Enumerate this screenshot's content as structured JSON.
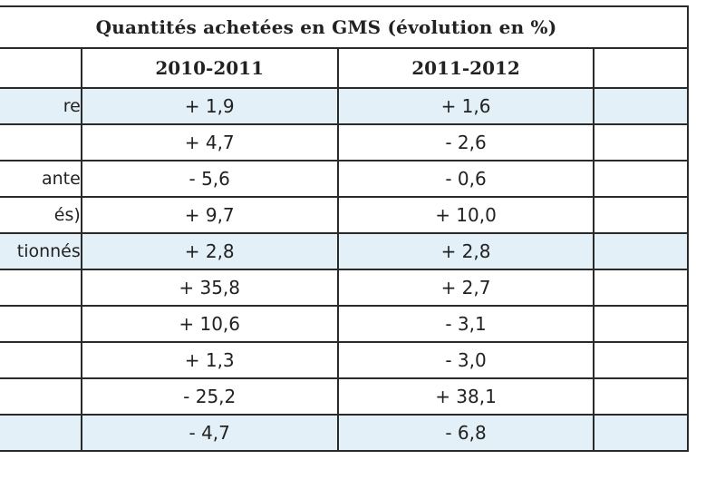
{
  "table": {
    "title": "Quantités achetées en GMS (évolution en %)",
    "columns": [
      "2010-2011",
      "2011-2012",
      ""
    ],
    "rows": [
      {
        "label": "re",
        "v1": "+ 1,9",
        "v2": "+ 1,6",
        "highlight": true
      },
      {
        "label": "",
        "v1": "+ 4,7",
        "v2": "- 2,6",
        "highlight": false
      },
      {
        "label": "ante",
        "v1": "- 5,6",
        "v2": "- 0,6",
        "highlight": false
      },
      {
        "label": "és)",
        "v1": "+ 9,7",
        "v2": "+ 10,0",
        "highlight": false
      },
      {
        "label": "tionnés",
        "v1": "+ 2,8",
        "v2": "+ 2,8",
        "highlight": true
      },
      {
        "label": "",
        "v1": "+ 35,8",
        "v2": "+ 2,7",
        "highlight": false
      },
      {
        "label": "",
        "v1": "+ 10,6",
        "v2": "- 3,1",
        "highlight": false
      },
      {
        "label": "",
        "v1": "+ 1,3",
        "v2": "- 3,0",
        "highlight": false
      },
      {
        "label": "",
        "v1": "- 25,2",
        "v2": "+ 38,1",
        "highlight": false
      },
      {
        "label": "",
        "v1": "- 4,7",
        "v2": "- 6,8",
        "highlight": true
      }
    ],
    "colors": {
      "highlight": "#e3f0f8",
      "border": "#2a2a2a"
    }
  }
}
